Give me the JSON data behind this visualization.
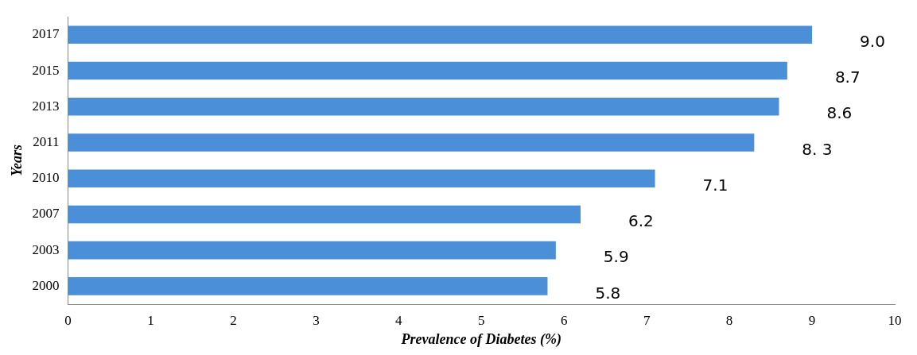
{
  "chart_data": {
    "type": "bar",
    "orientation": "horizontal",
    "xlabel": "Prevalence of Diabetes (%)",
    "ylabel": "Years",
    "categories": [
      "2017",
      "2015",
      "2013",
      "2011",
      "2010",
      "2007",
      "2003",
      "2000"
    ],
    "values": [
      9.0,
      8.7,
      8.6,
      8.3,
      7.1,
      6.2,
      5.9,
      5.8
    ],
    "value_labels": [
      "9.0",
      "8.7",
      "8.6",
      "8. 3",
      "7.1",
      "6.2",
      "5.9",
      "5.8"
    ],
    "color": "#4a8fd8",
    "xlim": [
      0,
      10
    ],
    "xticks": [
      0,
      1,
      2,
      3,
      4,
      5,
      6,
      7,
      8,
      9,
      10
    ],
    "grid": false,
    "legend": false
  }
}
